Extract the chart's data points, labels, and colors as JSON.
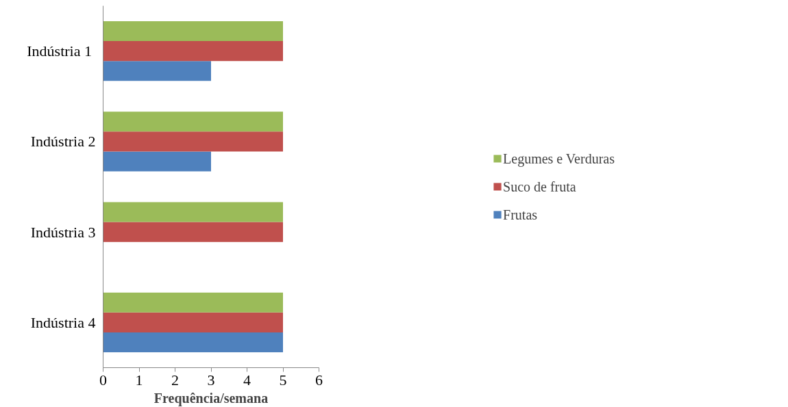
{
  "chart_data": {
    "type": "bar",
    "orientation": "horizontal",
    "xlabel": "Frequência/semana",
    "categories": [
      "Indústria  1",
      "Indústria 2",
      "Indústria 3",
      "Indústria 4"
    ],
    "series": [
      {
        "name": "Frutas",
        "color": "#4f81bd",
        "values": [
          3,
          3,
          0,
          5
        ]
      },
      {
        "name": "Suco de fruta",
        "color": "#c0504d",
        "values": [
          5,
          5,
          5,
          5
        ]
      },
      {
        "name": "Legumes e Verduras",
        "color": "#9bbb59",
        "values": [
          5,
          5,
          5,
          5
        ]
      }
    ],
    "xlim": [
      0,
      6
    ],
    "xticks": [
      0,
      1,
      2,
      3,
      4,
      5,
      6
    ],
    "grid": false,
    "legend": "right"
  }
}
